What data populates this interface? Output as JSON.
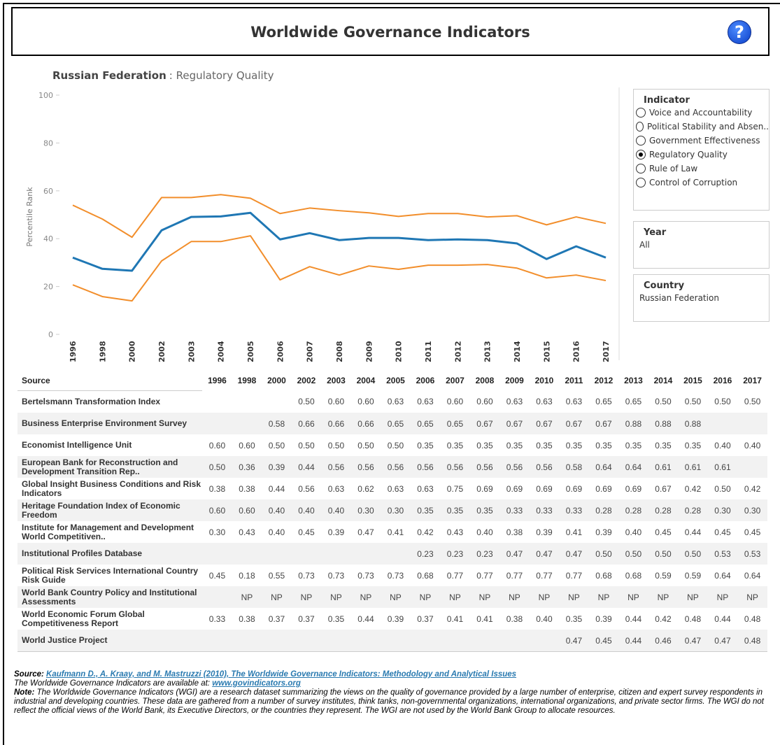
{
  "header": {
    "title": "Worldwide Governance Indicators",
    "help": "?"
  },
  "chart_data": {
    "type": "line",
    "title": "Russian Federation",
    "subtitle": ": Regulatory Quality",
    "y_label": "Percentile Rank",
    "categories": [
      "1996",
      "1998",
      "2000",
      "2002",
      "2003",
      "2004",
      "2005",
      "2006",
      "2007",
      "2008",
      "2009",
      "2010",
      "2011",
      "2012",
      "2013",
      "2014",
      "2015",
      "2016",
      "2017"
    ],
    "series": [
      {
        "color": "#f28e2b",
        "values": [
          54.0,
          48.2,
          40.6,
          57.2,
          57.2,
          58.4,
          56.9,
          50.5,
          52.8,
          51.7,
          50.8,
          49.3,
          50.5,
          50.5,
          49.1,
          49.6,
          45.8,
          49.1,
          46.4
        ]
      },
      {
        "color": "#1f77b4",
        "values": [
          32.1,
          27.4,
          26.6,
          43.5,
          49.1,
          49.3,
          50.8,
          39.7,
          42.3,
          39.4,
          40.3,
          40.3,
          39.4,
          39.7,
          39.4,
          38.0,
          31.5,
          36.8,
          32.1
        ]
      },
      {
        "color": "#f28e2b",
        "values": [
          20.7,
          15.8,
          14.0,
          30.7,
          38.8,
          38.8,
          41.2,
          22.8,
          28.3,
          24.8,
          28.6,
          27.2,
          28.9,
          28.9,
          29.2,
          27.7,
          23.6,
          24.8,
          22.5
        ]
      }
    ],
    "ylim": [
      0,
      100
    ],
    "yticks": [
      0,
      20,
      40,
      60,
      80,
      100
    ],
    "grid": false
  },
  "filters": {
    "indicator": {
      "title": "Indicator",
      "options": [
        "Voice and Accountability",
        "Political Stability and Absen..",
        "Government Effectiveness",
        "Regulatory Quality",
        "Rule of Law",
        "Control of Corruption"
      ],
      "selected": 3
    },
    "year": {
      "title": "Year",
      "value": "All"
    },
    "country": {
      "title": "Country",
      "value": "Russian Federation"
    }
  },
  "table": {
    "header": [
      "Source",
      "1996",
      "1998",
      "2000",
      "2002",
      "2003",
      "2004",
      "2005",
      "2006",
      "2007",
      "2008",
      "2009",
      "2010",
      "2011",
      "2012",
      "2013",
      "2014",
      "2015",
      "2016",
      "2017"
    ],
    "rows": [
      [
        "Bertelsmann Transformation Index",
        null,
        null,
        null,
        "0.50",
        "0.60",
        "0.60",
        "0.63",
        "0.63",
        "0.60",
        "0.60",
        "0.63",
        "0.63",
        "0.63",
        "0.65",
        "0.65",
        "0.50",
        "0.50",
        "0.50",
        "0.50"
      ],
      [
        "Business Enterprise Environment Survey",
        null,
        null,
        "0.58",
        "0.66",
        "0.66",
        "0.66",
        "0.65",
        "0.65",
        "0.65",
        "0.67",
        "0.67",
        "0.67",
        "0.67",
        "0.67",
        "0.88",
        "0.88",
        "0.88",
        null,
        null
      ],
      [
        "Economist Intelligence Unit",
        "0.60",
        "0.60",
        "0.50",
        "0.50",
        "0.50",
        "0.50",
        "0.50",
        "0.35",
        "0.35",
        "0.35",
        "0.35",
        "0.35",
        "0.35",
        "0.35",
        "0.35",
        "0.35",
        "0.35",
        "0.40",
        "0.40"
      ],
      [
        "European Bank for Reconstruction and Development Transition Rep..",
        "0.50",
        "0.36",
        "0.39",
        "0.44",
        "0.56",
        "0.56",
        "0.56",
        "0.56",
        "0.56",
        "0.56",
        "0.56",
        "0.56",
        "0.58",
        "0.64",
        "0.64",
        "0.61",
        "0.61",
        "0.61",
        null
      ],
      [
        "Global Insight Business Conditions and Risk Indicators",
        "0.38",
        "0.38",
        "0.44",
        "0.56",
        "0.63",
        "0.62",
        "0.63",
        "0.63",
        "0.75",
        "0.69",
        "0.69",
        "0.69",
        "0.69",
        "0.69",
        "0.69",
        "0.67",
        "0.42",
        "0.50",
        "0.42"
      ],
      [
        "Heritage Foundation Index of Economic Freedom",
        "0.60",
        "0.60",
        "0.40",
        "0.40",
        "0.40",
        "0.30",
        "0.30",
        "0.35",
        "0.35",
        "0.35",
        "0.33",
        "0.33",
        "0.33",
        "0.28",
        "0.28",
        "0.28",
        "0.28",
        "0.30",
        "0.30"
      ],
      [
        "Institute for Management and Development World Competitiven..",
        "0.30",
        "0.43",
        "0.40",
        "0.45",
        "0.39",
        "0.47",
        "0.41",
        "0.42",
        "0.43",
        "0.40",
        "0.38",
        "0.39",
        "0.41",
        "0.39",
        "0.40",
        "0.45",
        "0.44",
        "0.45",
        "0.45"
      ],
      [
        "Institutional Profiles Database",
        null,
        null,
        null,
        null,
        null,
        null,
        null,
        "0.23",
        "0.23",
        "0.23",
        "0.47",
        "0.47",
        "0.47",
        "0.50",
        "0.50",
        "0.50",
        "0.50",
        "0.53",
        "0.53"
      ],
      [
        "Political Risk Services International Country Risk Guide",
        "0.45",
        "0.18",
        "0.55",
        "0.73",
        "0.73",
        "0.73",
        "0.73",
        "0.68",
        "0.77",
        "0.77",
        "0.77",
        "0.77",
        "0.77",
        "0.68",
        "0.68",
        "0.59",
        "0.59",
        "0.64",
        "0.64"
      ],
      [
        "World Bank Country Policy and Institutional Assessments",
        null,
        "NP",
        "NP",
        "NP",
        "NP",
        "NP",
        "NP",
        "NP",
        "NP",
        "NP",
        "NP",
        "NP",
        "NP",
        "NP",
        "NP",
        "NP",
        "NP",
        "NP",
        "NP"
      ],
      [
        "World Economic Forum Global Competitiveness Report",
        "0.33",
        "0.38",
        "0.37",
        "0.37",
        "0.35",
        "0.44",
        "0.39",
        "0.37",
        "0.41",
        "0.41",
        "0.38",
        "0.40",
        "0.35",
        "0.39",
        "0.44",
        "0.42",
        "0.48",
        "0.44",
        "0.48"
      ],
      [
        "World Justice Project",
        null,
        null,
        null,
        null,
        null,
        null,
        null,
        null,
        null,
        null,
        null,
        null,
        "0.47",
        "0.45",
        "0.44",
        "0.46",
        "0.47",
        "0.47",
        "0.48"
      ]
    ]
  },
  "footer": {
    "source_label": "Source:",
    "source_link": "Kaufmann D., A. Kraay, and M. Mastruzzi (2010), The Worldwide Governance Indicators: Methodology and Analytical Issues",
    "available": "The Worldwide Governance Indicators are available at:",
    "available_link": "www.govindicators.org",
    "note_label": "Note:",
    "note": "The Worldwide Governance Indicators (WGI) are a research dataset summarizing the views on the quality of governance provided by a large number of enterprise, citizen and expert survey respondents in industrial and developing countries. These data are gathered from a number of survey institutes, think tanks, non-governmental organizations, international organizations, and private sector firms. The WGI do not reflect the official views of the World Bank, its Executive Directors, or the countries they represent. The WGI are not used by the World Bank Group to allocate resources."
  }
}
